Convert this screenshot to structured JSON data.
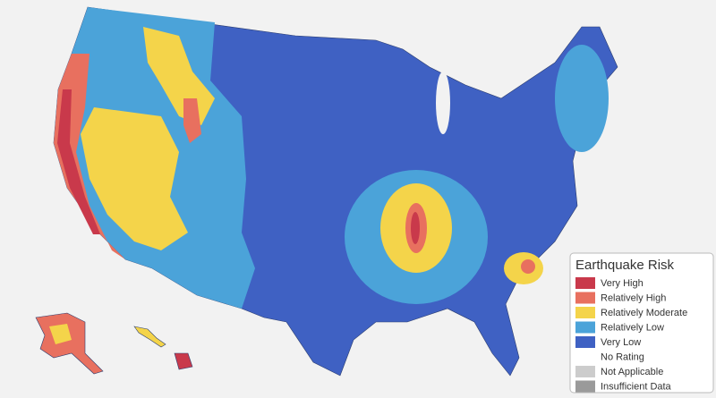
{
  "legend": {
    "title": "Earthquake Risk",
    "items": [
      {
        "label": "Very High",
        "color": "#c9394b"
      },
      {
        "label": "Relatively High",
        "color": "#e8705f"
      },
      {
        "label": "Relatively Moderate",
        "color": "#f4d44a"
      },
      {
        "label": "Relatively Low",
        "color": "#4ba3d9"
      },
      {
        "label": "Very Low",
        "color": "#3f61c3"
      },
      {
        "label": "No Rating",
        "color": "#ffffff"
      },
      {
        "label": "Not Applicable",
        "color": "#cccccc"
      },
      {
        "label": "Insufficient Data",
        "color": "#9a9a9a"
      }
    ]
  }
}
